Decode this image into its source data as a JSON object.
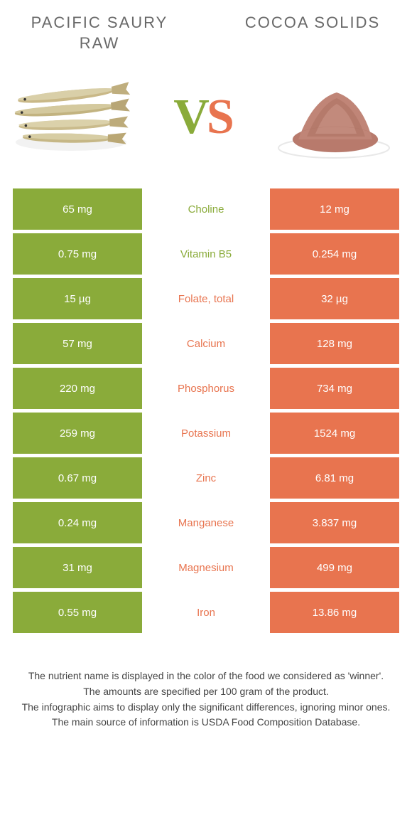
{
  "colors": {
    "green": "#8aab3a",
    "orange": "#e8744f",
    "title_gray": "#696969",
    "footer_gray": "#444444"
  },
  "header": {
    "left_title": "PACIFIC SAURY RAW",
    "right_title": "COCOA SOLIDS",
    "vs_v": "V",
    "vs_s": "S"
  },
  "rows": [
    {
      "left": "65 mg",
      "mid": "Choline",
      "right": "12 mg",
      "winner": "green"
    },
    {
      "left": "0.75 mg",
      "mid": "Vitamin B5",
      "right": "0.254 mg",
      "winner": "green"
    },
    {
      "left": "15 µg",
      "mid": "Folate, total",
      "right": "32 µg",
      "winner": "orange"
    },
    {
      "left": "57 mg",
      "mid": "Calcium",
      "right": "128 mg",
      "winner": "orange"
    },
    {
      "left": "220 mg",
      "mid": "Phosphorus",
      "right": "734 mg",
      "winner": "orange"
    },
    {
      "left": "259 mg",
      "mid": "Potassium",
      "right": "1524 mg",
      "winner": "orange"
    },
    {
      "left": "0.67 mg",
      "mid": "Zinc",
      "right": "6.81 mg",
      "winner": "orange"
    },
    {
      "left": "0.24 mg",
      "mid": "Manganese",
      "right": "3.837 mg",
      "winner": "orange"
    },
    {
      "left": "31 mg",
      "mid": "Magnesium",
      "right": "499 mg",
      "winner": "orange"
    },
    {
      "left": "0.55 mg",
      "mid": "Iron",
      "right": "13.86 mg",
      "winner": "orange"
    }
  ],
  "footer": {
    "line1": "The nutrient name is displayed in the color of the food we considered as 'winner'.",
    "line2": "The amounts are specified per 100 gram of the product.",
    "line3": "The infographic aims to display only the significant differences, ignoring minor ones.",
    "line4": "The main source of information is USDA Food Composition Database."
  }
}
